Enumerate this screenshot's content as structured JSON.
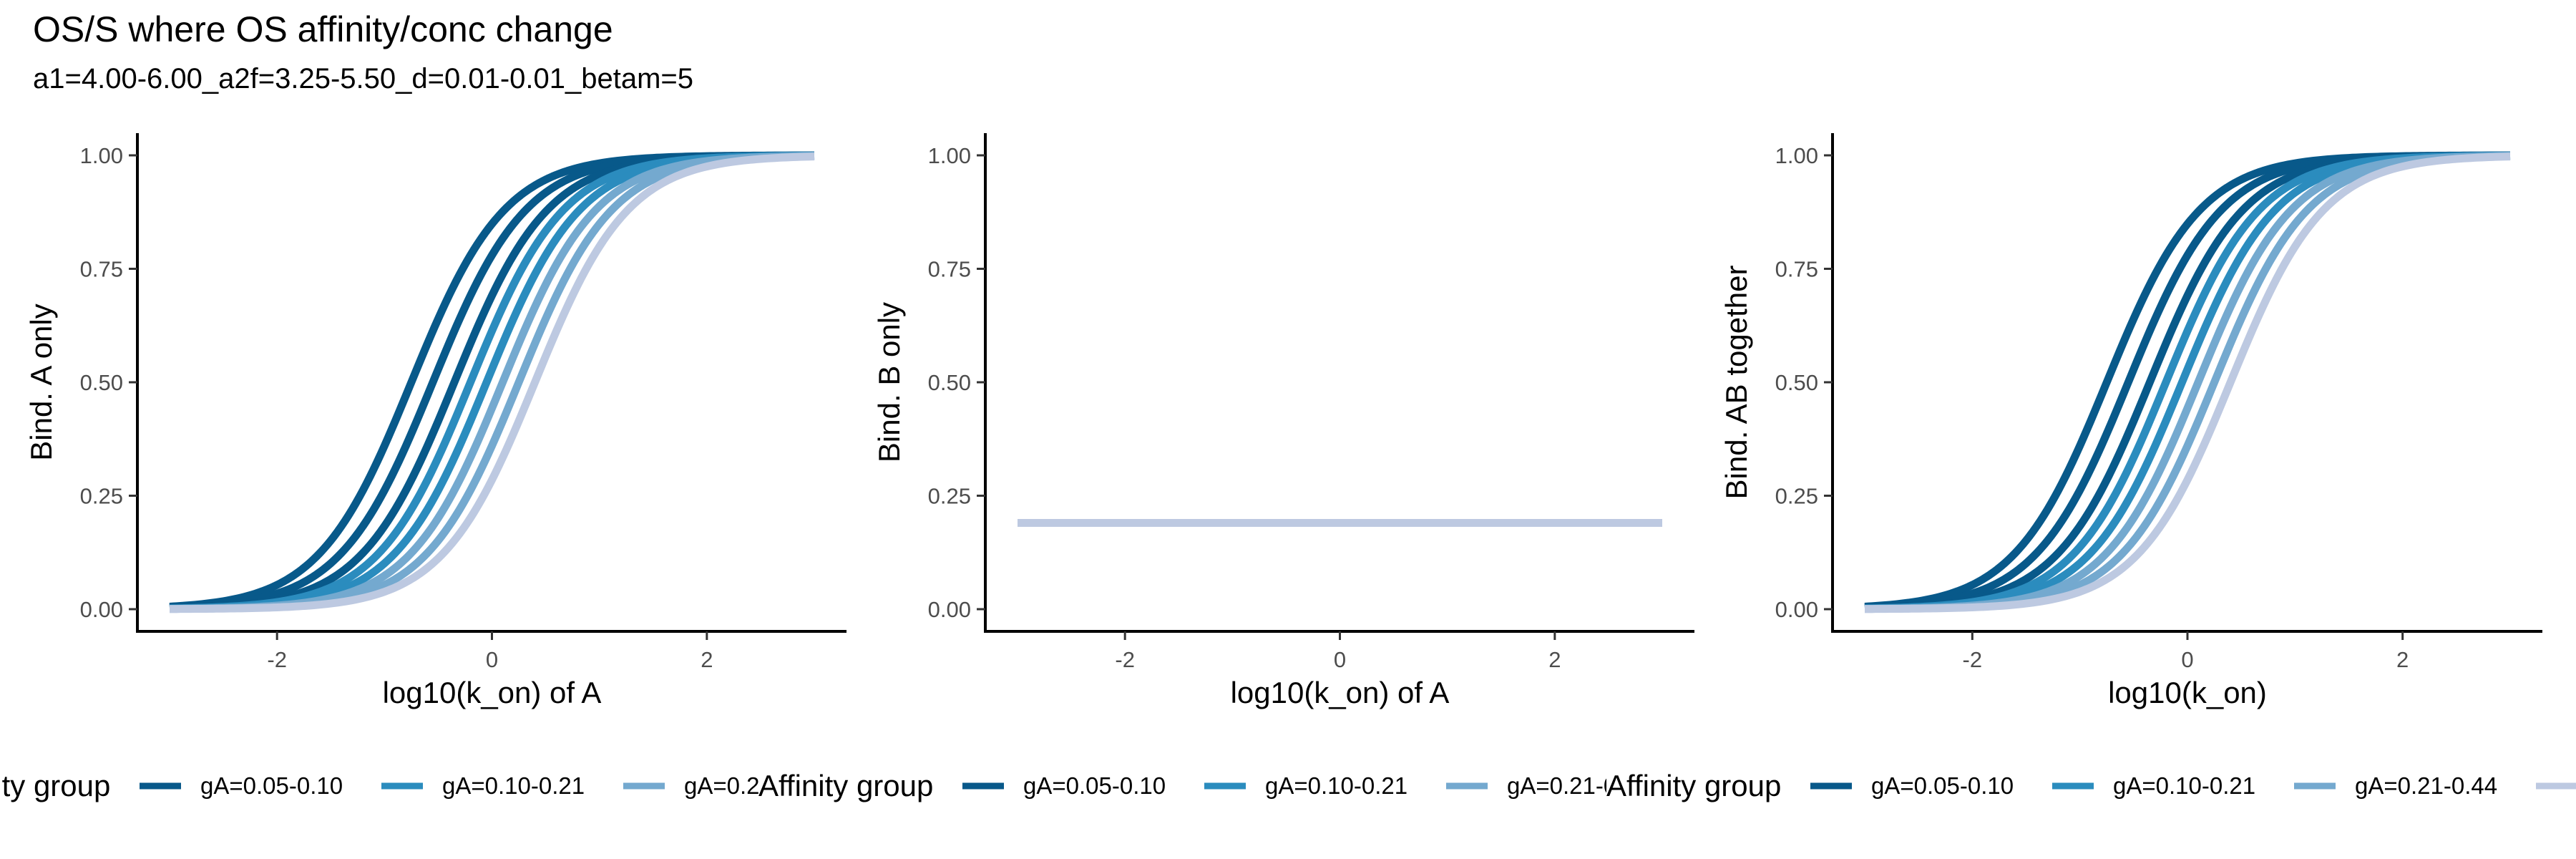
{
  "title": "OS/S where OS affinity/conc change",
  "subtitle": "a1=4.00-6.00_a2f=3.25-5.50_d=0.01-0.01_betam=5",
  "legend": {
    "title": "Affinity group",
    "entries": [
      {
        "label": "gA=0.05-0.10",
        "color": "#08598a"
      },
      {
        "label": "gA=0.10-0.21",
        "color": "#2b8cbe"
      },
      {
        "label": "gA=0.21-0.44",
        "color": "#74a9cf"
      },
      {
        "label": "",
        "color": "#bdc9e1"
      }
    ]
  },
  "chart_data": [
    {
      "type": "line",
      "xlabel": "log10(k_on) of A",
      "ylabel": "Bind. A only",
      "xlim": [
        -3,
        3
      ],
      "ylim": [
        0,
        1
      ],
      "xticks": [
        -2,
        0,
        2
      ],
      "yticks": [
        0.0,
        0.25,
        0.5,
        0.75,
        1.0
      ],
      "ytick_labels": [
        "0.00",
        "0.25",
        "0.50",
        "0.75",
        "1.00"
      ],
      "grid": false,
      "series": [
        {
          "group": 0,
          "midpoint": -0.75,
          "color": "#08598a"
        },
        {
          "group": 0,
          "midpoint": -0.55,
          "color": "#08598a"
        },
        {
          "group": 0,
          "midpoint": -0.35,
          "color": "#08598a"
        },
        {
          "group": 1,
          "midpoint": -0.2,
          "color": "#2b8cbe"
        },
        {
          "group": 1,
          "midpoint": -0.05,
          "color": "#2b8cbe"
        },
        {
          "group": 2,
          "midpoint": 0.1,
          "color": "#74a9cf"
        },
        {
          "group": 2,
          "midpoint": 0.25,
          "color": "#74a9cf"
        },
        {
          "group": 3,
          "midpoint": 0.4,
          "color": "#bdc9e1"
        }
      ]
    },
    {
      "type": "line",
      "xlabel": "log10(k_on) of A",
      "ylabel": "Bind. B only",
      "xlim": [
        -3,
        3
      ],
      "ylim": [
        0,
        1
      ],
      "xticks": [
        -2,
        0,
        2
      ],
      "yticks": [
        0.0,
        0.25,
        0.5,
        0.75,
        1.0
      ],
      "ytick_labels": [
        "0.00",
        "0.25",
        "0.50",
        "0.75",
        "1.00"
      ],
      "grid": false,
      "series": [
        {
          "group": 3,
          "constant": 0.19,
          "color": "#bdc9e1"
        }
      ]
    },
    {
      "type": "line",
      "xlabel": "log10(k_on)",
      "ylabel": "Bind. AB together",
      "xlim": [
        -3,
        3
      ],
      "ylim": [
        0,
        1
      ],
      "xticks": [
        -2,
        0,
        2
      ],
      "yticks": [
        0.0,
        0.25,
        0.5,
        0.75,
        1.0
      ],
      "ytick_labels": [
        "0.00",
        "0.25",
        "0.50",
        "0.75",
        "1.00"
      ],
      "grid": false,
      "series": [
        {
          "group": 0,
          "midpoint": -0.75,
          "color": "#08598a"
        },
        {
          "group": 0,
          "midpoint": -0.55,
          "color": "#08598a"
        },
        {
          "group": 0,
          "midpoint": -0.35,
          "color": "#08598a"
        },
        {
          "group": 1,
          "midpoint": -0.2,
          "color": "#2b8cbe"
        },
        {
          "group": 1,
          "midpoint": -0.05,
          "color": "#2b8cbe"
        },
        {
          "group": 2,
          "midpoint": 0.1,
          "color": "#74a9cf"
        },
        {
          "group": 2,
          "midpoint": 0.25,
          "color": "#74a9cf"
        },
        {
          "group": 3,
          "midpoint": 0.4,
          "color": "#bdc9e1"
        }
      ]
    }
  ]
}
